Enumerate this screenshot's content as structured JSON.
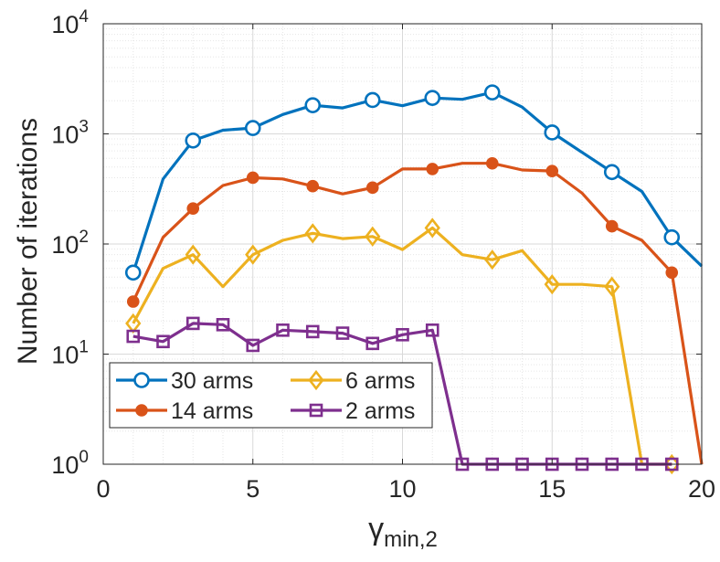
{
  "chart_data": {
    "type": "line",
    "title": "",
    "xlabel": "γ",
    "xlabel_subscript": "min,2",
    "ylabel": "Number of iterations",
    "xlim": [
      0,
      20
    ],
    "ylim": [
      1,
      10000
    ],
    "yscale": "log",
    "grid": true,
    "minor_grid": true,
    "legend_placement": "bottom-left",
    "x_ticks": [
      0,
      5,
      10,
      15,
      20
    ],
    "y_ticks": [
      {
        "value": 1,
        "base": "10",
        "exp": "0"
      },
      {
        "value": 10,
        "base": "10",
        "exp": "1"
      },
      {
        "value": 100,
        "base": "10",
        "exp": "2"
      },
      {
        "value": 1000,
        "base": "10",
        "exp": "3"
      },
      {
        "value": 10000,
        "base": "10",
        "exp": "4"
      }
    ],
    "x": [
      1,
      2,
      3,
      4,
      5,
      6,
      7,
      8,
      9,
      10,
      11,
      12,
      13,
      14,
      15,
      16,
      17,
      18,
      19,
      20
    ],
    "series": [
      {
        "name": "30 arms",
        "color": "#0072BD",
        "marker": "circle",
        "marker_x": [
          1,
          3,
          5,
          7,
          9,
          11,
          13,
          15,
          17,
          19
        ],
        "values": [
          55,
          390,
          870,
          1080,
          1130,
          1500,
          1820,
          1720,
          2030,
          1800,
          2120,
          2060,
          2380,
          1750,
          1030,
          680,
          450,
          300,
          115,
          63
        ]
      },
      {
        "name": "14 arms",
        "color": "#D95319",
        "marker": "filled-circle",
        "marker_x": [
          1,
          3,
          5,
          7,
          9,
          11,
          13,
          15,
          17,
          19
        ],
        "values": [
          30,
          115,
          210,
          340,
          400,
          390,
          335,
          285,
          325,
          480,
          480,
          540,
          540,
          470,
          460,
          290,
          145,
          108,
          55,
          1
        ]
      },
      {
        "name": "6 arms",
        "color": "#EDB120",
        "marker": "diamond",
        "marker_x": [
          1,
          3,
          5,
          7,
          9,
          11,
          13,
          15,
          17,
          19
        ],
        "values": [
          19,
          60,
          80,
          41,
          80,
          108,
          125,
          112,
          117,
          89,
          140,
          80,
          72,
          87,
          43,
          43,
          41,
          1,
          1,
          null
        ]
      },
      {
        "name": "2 arms",
        "color": "#7E2F8E",
        "marker": "square",
        "marker_x": [
          1,
          2,
          3,
          4,
          5,
          6,
          7,
          8,
          9,
          10,
          11,
          12,
          13,
          14,
          15,
          16,
          17,
          18,
          19
        ],
        "values": [
          14.5,
          13,
          19,
          18.5,
          12,
          16.5,
          16,
          15.5,
          12.5,
          15,
          16.5,
          1,
          1,
          1,
          1,
          1,
          1,
          1,
          1,
          null
        ]
      }
    ]
  }
}
